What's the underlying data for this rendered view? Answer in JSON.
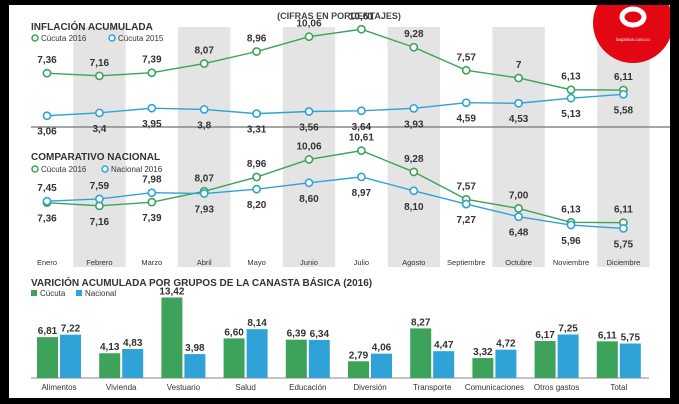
{
  "header": {
    "subtitle": "(CIFRAS EN PORCENTAJES)",
    "logo_text": "laopinion.com.co"
  },
  "colors": {
    "green": "#3ea35a",
    "blue": "#2fa3d8",
    "logo_red": "#e30613",
    "stripe": "#e4e4e4"
  },
  "chart_data": [
    {
      "type": "line",
      "title": "INFLACIÓN ACUMULADA",
      "x": [
        "Enero",
        "Febrero",
        "Marzo",
        "Abril",
        "Mayo",
        "Junio",
        "Julio",
        "Agosto",
        "Septiembre",
        "Octubre",
        "Noviembre",
        "Diciembre"
      ],
      "series": [
        {
          "name": "Cúcuta 2016",
          "values": [
            7.36,
            7.16,
            7.39,
            8.07,
            8.96,
            10.06,
            10.61,
            9.28,
            7.57,
            7,
            6.13,
            6.11
          ],
          "labels": [
            "7,36",
            "7,16",
            "7,39",
            "8,07",
            "8,96",
            "10,06",
            "10,61",
            "9,28",
            "7,57",
            "7",
            "6,13",
            "6,11"
          ]
        },
        {
          "name": "Cúcuta 2015",
          "values": [
            3.06,
            3.4,
            3.95,
            3.8,
            3.31,
            3.56,
            3.64,
            3.93,
            4.59,
            4.53,
            5.13,
            5.58
          ],
          "labels": [
            "3,06",
            "3,4",
            "3,95",
            "3,8",
            "3,31",
            "3,56",
            "3,64",
            "3,93",
            "4,59",
            "4,53",
            "5,13",
            "5,58"
          ]
        }
      ]
    },
    {
      "type": "line",
      "title": "COMPARATIVO NACIONAL",
      "x": [
        "Enero",
        "Febrero",
        "Marzo",
        "Abril",
        "Mayo",
        "Junio",
        "Julio",
        "Agosto",
        "Septiembre",
        "Octubre",
        "Noviembre",
        "Diciembre"
      ],
      "series": [
        {
          "name": "Cúcuta 2016",
          "values": [
            7.36,
            7.16,
            7.39,
            8.07,
            8.96,
            10.06,
            10.61,
            9.28,
            7.57,
            7.0,
            6.13,
            6.11
          ],
          "labels": [
            "7,36",
            "7,16",
            "7,39",
            "8,07",
            "8,96",
            "10,06",
            "10,61",
            "9,28",
            "7,57",
            "7,00",
            "6,13",
            "6,11"
          ]
        },
        {
          "name": "Nacional 2016",
          "values": [
            7.45,
            7.59,
            7.98,
            7.93,
            8.2,
            8.6,
            8.97,
            8.1,
            7.27,
            6.48,
            5.96,
            5.75
          ],
          "labels": [
            "7,45",
            "7,59",
            "7,98",
            "7,93",
            "8,20",
            "8,60",
            "8,97",
            "8,10",
            "7,27",
            "6,48",
            "5,96",
            "5,75"
          ]
        }
      ]
    },
    {
      "type": "bar",
      "title": "VARICIÓN ACUMULADA POR GRUPOS DE LA CANASTA BÁSICA (2016)",
      "categories": [
        "Alimentos",
        "Vivienda",
        "Vestuario",
        "Salud",
        "Educación",
        "Diversión",
        "Transporte",
        "Comunicaciones",
        "Otros gastos",
        "Total"
      ],
      "series": [
        {
          "name": "Cúcuta",
          "values": [
            6.81,
            4.13,
            13.42,
            6.6,
            6.39,
            2.79,
            8.27,
            3.32,
            6.17,
            6.11
          ],
          "labels": [
            "6,81",
            "4,13",
            "13,42",
            "6,60",
            "6,39",
            "2,79",
            "8,27",
            "3,32",
            "6,17",
            "6,11"
          ]
        },
        {
          "name": "Nacional",
          "values": [
            7.22,
            4.83,
            3.98,
            8.14,
            6.34,
            4.06,
            4.47,
            4.72,
            7.25,
            5.75
          ],
          "labels": [
            "7,22",
            "4,83",
            "3,98",
            "8,14",
            "6,34",
            "4,06",
            "4,47",
            "4,72",
            "7,25",
            "5,75"
          ]
        }
      ]
    }
  ]
}
